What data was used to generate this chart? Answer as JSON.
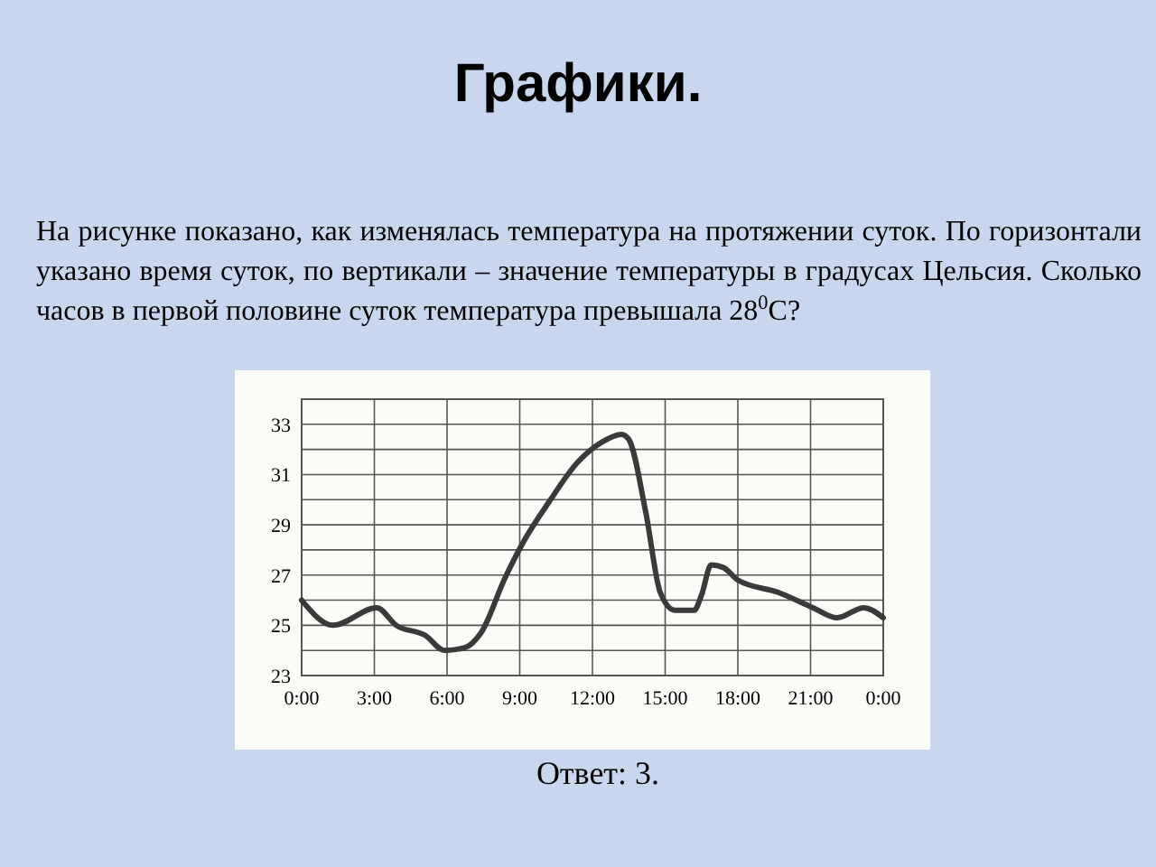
{
  "chart_data": {
    "type": "line",
    "title": "Графики.",
    "annotations": [
      "На рисунке показано, как изменялась температура на протяжении суток. По горизонтали указано время суток, по вертикали – значение температуры в градусах Цельсия. Сколько часов в первой половине суток температура превышала 28$^{0}$С?",
      "Ответ: 3."
    ],
    "x": [
      0,
      1.3,
      3.1,
      3.9,
      5.1,
      5.9,
      6.7,
      7.4,
      8.4,
      9.2,
      10.2,
      11.4,
      12.4,
      13.2,
      13.5,
      14.2,
      14.8,
      15.4,
      16.2,
      16.5,
      16.9,
      17.4,
      18.0,
      19.7,
      21.1,
      22.1,
      23.2,
      24
    ],
    "series": [
      {
        "color": "#3a3a3a",
        "values": [
          26.0,
          25.0,
          25.7,
          25.0,
          24.6,
          24.0,
          24.1,
          24.7,
          26.9,
          28.4,
          29.9,
          31.5,
          32.3,
          32.6,
          32.4,
          29.5,
          26.3,
          25.6,
          25.6,
          26.2,
          27.4,
          27.3,
          26.8,
          26.3,
          25.7,
          25.3,
          25.7,
          25.3
        ]
      }
    ],
    "xlim": [
      0,
      24
    ],
    "xticks": [
      {
        "value": 0,
        "label": "0:00"
      },
      {
        "value": 3,
        "label": "3:00"
      },
      {
        "value": 6,
        "label": "6:00"
      },
      {
        "value": 9,
        "label": "9:00"
      },
      {
        "value": 12,
        "label": "12:00"
      },
      {
        "value": 15,
        "label": "15:00"
      },
      {
        "value": 18,
        "label": "18:00"
      },
      {
        "value": 21,
        "label": "21:00"
      },
      {
        "value": 24,
        "label": "0:00"
      }
    ],
    "ylim": [
      23,
      34
    ],
    "yticks": [
      23,
      {
        "value": 24,
        "label": null
      },
      25,
      {
        "value": 26,
        "label": null
      },
      27,
      {
        "value": 28,
        "label": null
      },
      29,
      {
        "value": 30,
        "label": null
      },
      31,
      {
        "value": 32,
        "label": null
      },
      33,
      {
        "value": 34,
        "label": null
      }
    ],
    "grid": true,
    "marker": "none",
    "line_style": "solid"
  }
}
